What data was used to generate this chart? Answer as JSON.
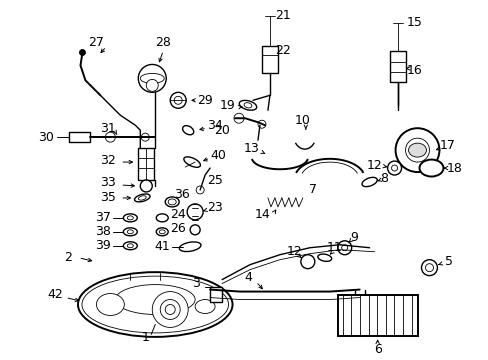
{
  "bg_color": "#ffffff",
  "fig_width": 4.89,
  "fig_height": 3.6,
  "dpi": 100,
  "text_color": "#000000",
  "label_fontsize": 8.5
}
